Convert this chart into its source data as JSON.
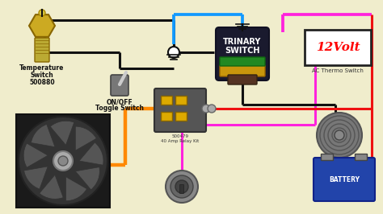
{
  "bg_color": "#f0edcc",
  "labels": {
    "temp_switch": [
      "Temperature",
      "Switch",
      "500880"
    ],
    "toggle": [
      "ON/OFF",
      "Toggle Switch"
    ],
    "relay": [
      "500479",
      "40 Amp Relay Kit"
    ],
    "trinary": [
      "TRINARY",
      "SWITCH"
    ],
    "ac_label": [
      "12Volt",
      "AC Thermo Switch"
    ],
    "battery": "BATTERY",
    "fan": ""
  },
  "wire_colors": {
    "black": "#111111",
    "red": "#ee1111",
    "orange": "#ff8800",
    "blue": "#1199ff",
    "pink": "#ff22dd"
  },
  "lw": 2.2
}
